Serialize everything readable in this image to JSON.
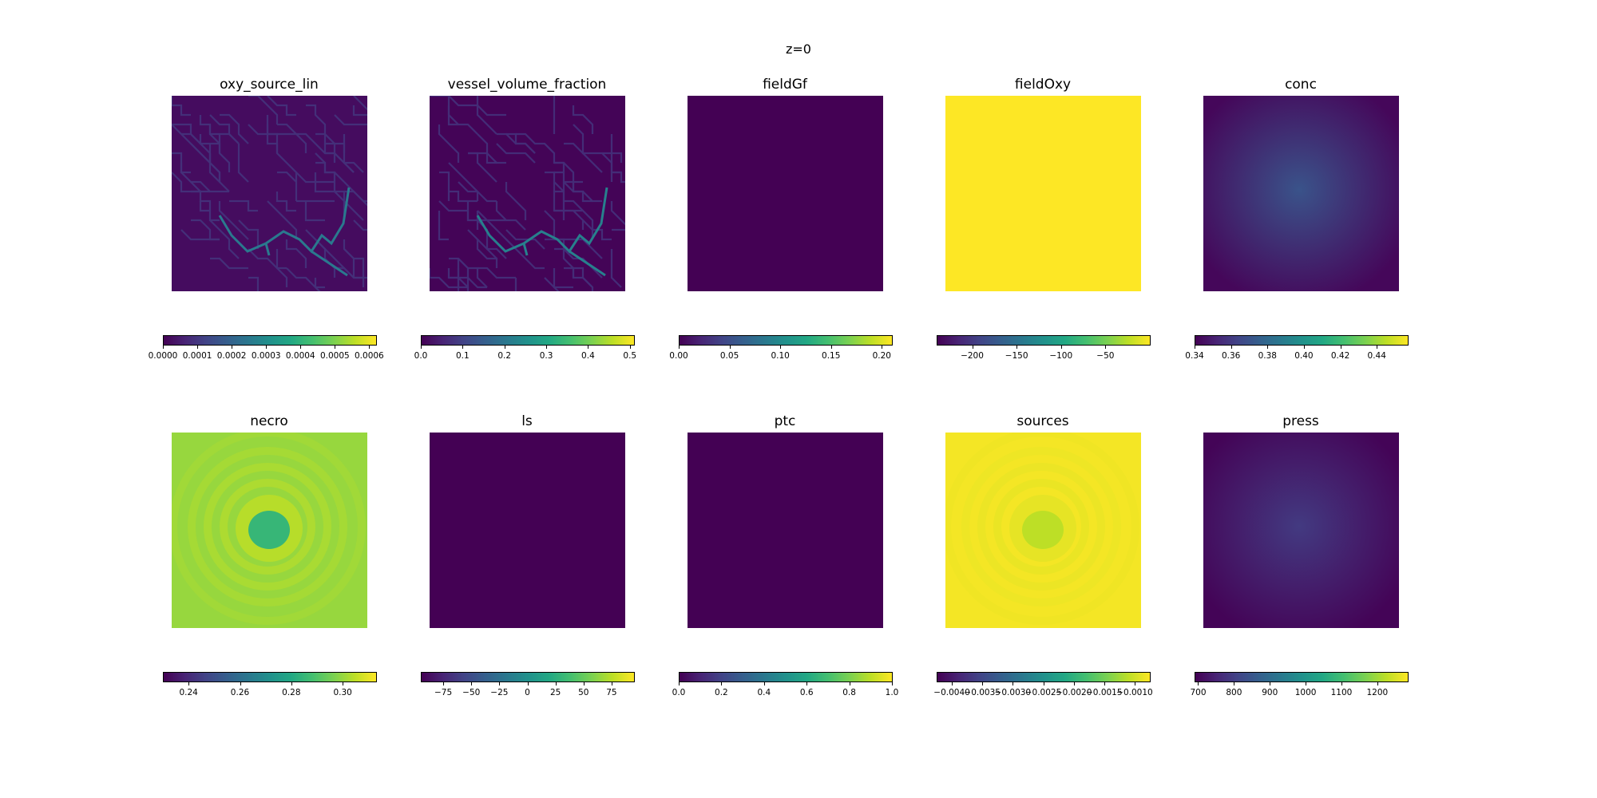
{
  "figure": {
    "suptitle": "z=0"
  },
  "chart_data": [
    {
      "type": "heatmap",
      "title": "oxy_source_lin",
      "pattern": "vessels",
      "colormap": "viridis",
      "clim": [
        0,
        0.00062
      ],
      "ticks": [
        0,
        0.0001,
        0.0002,
        0.0003,
        0.0004,
        0.0005,
        0.0006
      ],
      "tick_labels": [
        "0.0000",
        "0.0001",
        "0.0002",
        "0.0003",
        "0.0004",
        "0.0005",
        "0.0006"
      ],
      "background_value": 2e-05,
      "highlight_value": 0.00025
    },
    {
      "type": "heatmap",
      "title": "vessel_volume_fraction",
      "pattern": "vessels",
      "colormap": "viridis",
      "clim": [
        0,
        0.51
      ],
      "ticks": [
        0,
        0.1,
        0.2,
        0.3,
        0.4,
        0.5
      ],
      "tick_labels": [
        "0.0",
        "0.1",
        "0.2",
        "0.3",
        "0.4",
        "0.5"
      ],
      "background_value": 0.005,
      "highlight_value": 0.22
    },
    {
      "type": "heatmap",
      "title": "fieldGf",
      "pattern": "uniform",
      "colormap": "viridis",
      "clim": [
        0,
        0.21
      ],
      "ticks": [
        0,
        0.05,
        0.1,
        0.15,
        0.2
      ],
      "tick_labels": [
        "0.00",
        "0.05",
        "0.10",
        "0.15",
        "0.20"
      ],
      "background_value": 0
    },
    {
      "type": "heatmap",
      "title": "fieldOxy",
      "pattern": "uniform",
      "colormap": "viridis",
      "clim": [
        -240,
        0
      ],
      "ticks": [
        -200,
        -150,
        -100,
        -50
      ],
      "tick_labels": [
        "−200",
        "−150",
        "−100",
        "−50"
      ],
      "background_value": 0
    },
    {
      "type": "heatmap",
      "title": "conc",
      "pattern": "center_blob",
      "colormap": "viridis",
      "clim": [
        0.34,
        0.457
      ],
      "ticks": [
        0.34,
        0.36,
        0.38,
        0.4,
        0.42,
        0.44
      ],
      "tick_labels": [
        "0.34",
        "0.36",
        "0.38",
        "0.40",
        "0.42",
        "0.44"
      ],
      "background_value": 0.342,
      "center_value": 0.37
    },
    {
      "type": "heatmap",
      "title": "necro",
      "pattern": "rings",
      "colormap": "viridis",
      "clim": [
        0.23,
        0.313
      ],
      "ticks": [
        0.24,
        0.26,
        0.28,
        0.3
      ],
      "tick_labels": [
        "0.24",
        "0.26",
        "0.28",
        "0.30"
      ],
      "background_value": 0.3,
      "center_value": 0.285,
      "ring_value": 0.305
    },
    {
      "type": "heatmap",
      "title": "ls",
      "pattern": "uniform",
      "colormap": "viridis",
      "clim": [
        -95,
        95
      ],
      "ticks": [
        -75,
        -50,
        -25,
        0,
        25,
        50,
        75
      ],
      "tick_labels": [
        "−75",
        "−50",
        "−25",
        "0",
        "25",
        "50",
        "75"
      ],
      "background_value": -95
    },
    {
      "type": "heatmap",
      "title": "ptc",
      "pattern": "uniform",
      "colormap": "viridis",
      "clim": [
        0,
        1
      ],
      "ticks": [
        0,
        0.2,
        0.4,
        0.6,
        0.8,
        1.0
      ],
      "tick_labels": [
        "0.0",
        "0.2",
        "0.4",
        "0.6",
        "0.8",
        "1.0"
      ],
      "background_value": 0
    },
    {
      "type": "heatmap",
      "title": "sources",
      "pattern": "rings",
      "colormap": "viridis",
      "clim": [
        -0.00425,
        -0.00075
      ],
      "ticks": [
        -0.004,
        -0.0035,
        -0.003,
        -0.0025,
        -0.002,
        -0.0015,
        -0.001
      ],
      "tick_labels": [
        "−0.0040",
        "−0.0035",
        "−0.0030",
        "−0.0025",
        "−0.0020",
        "−0.0015",
        "−0.0010"
      ],
      "background_value": -0.0008,
      "center_value": -0.0011,
      "ring_value": -0.0009
    },
    {
      "type": "heatmap",
      "title": "press",
      "pattern": "center_blob",
      "colormap": "viridis",
      "clim": [
        690,
        1285
      ],
      "ticks": [
        700,
        800,
        900,
        1000,
        1100,
        1200
      ],
      "tick_labels": [
        "700",
        "800",
        "900",
        "1000",
        "1100",
        "1200"
      ],
      "background_value": 695,
      "center_value": 790
    }
  ]
}
